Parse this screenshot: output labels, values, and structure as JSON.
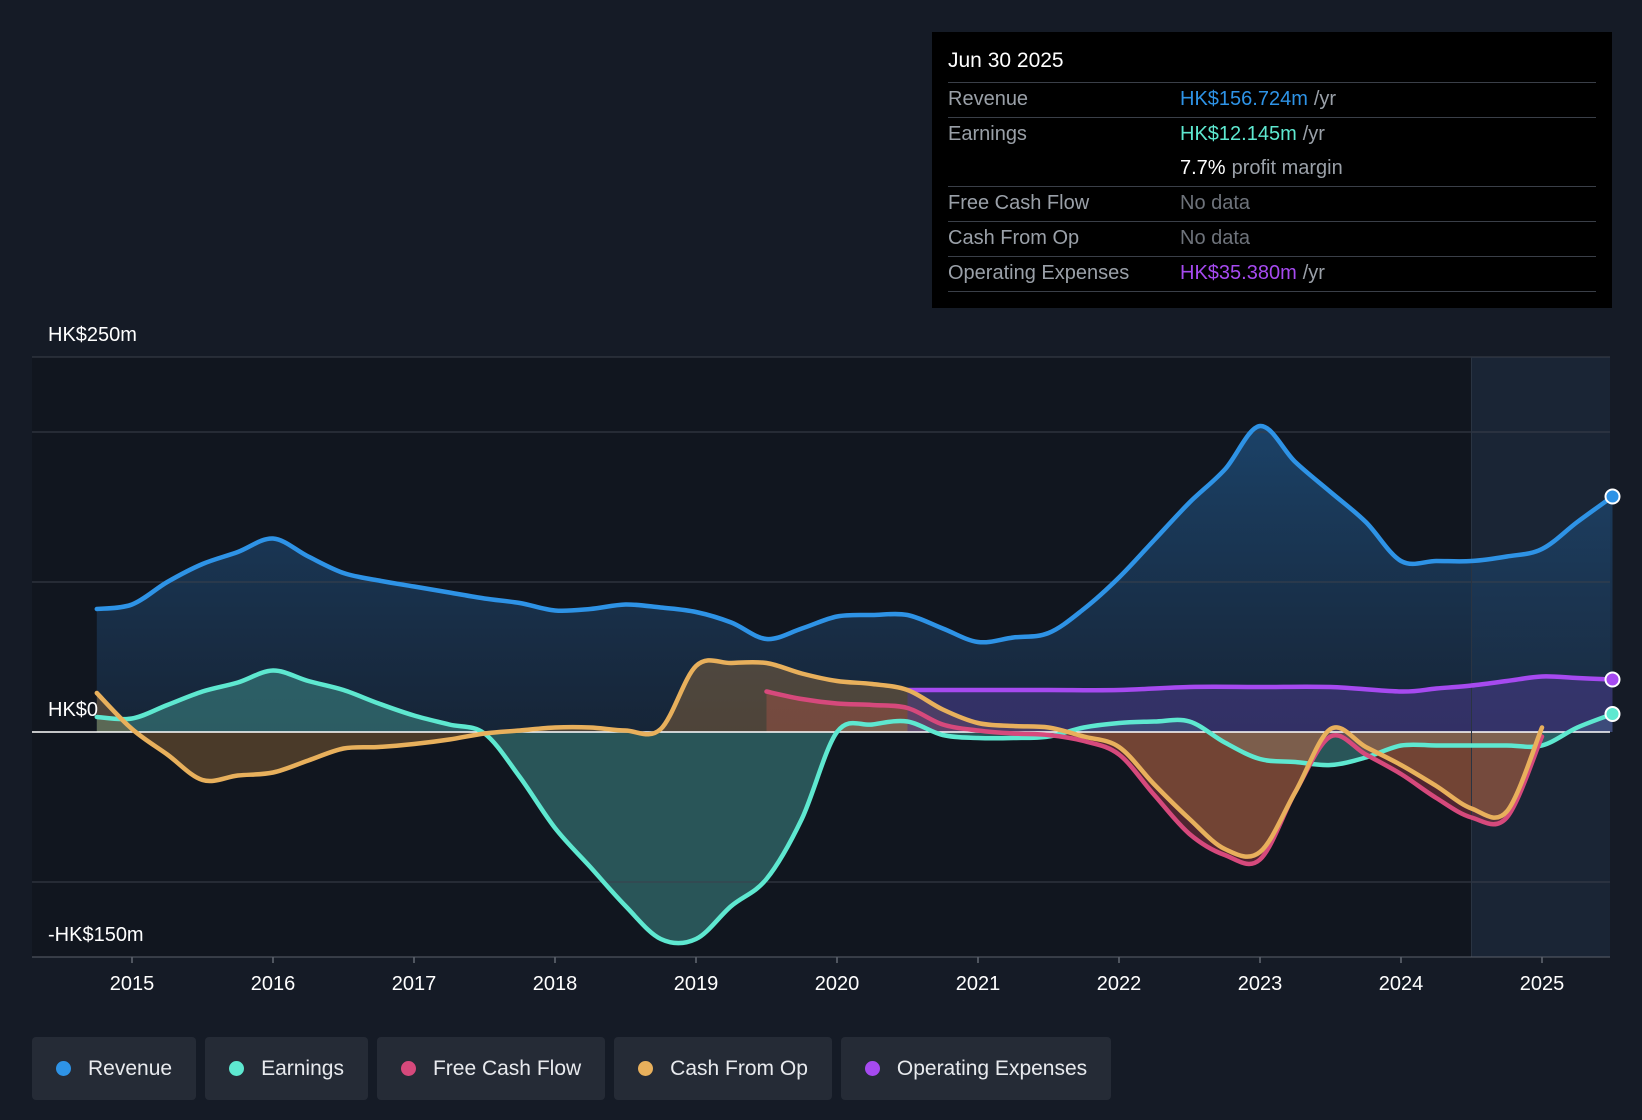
{
  "tooltip": {
    "date": "Jun 30 2025",
    "revenue_label": "Revenue",
    "revenue_value": "HK$156.724m",
    "revenue_unit": "/yr",
    "earnings_label": "Earnings",
    "earnings_value": "HK$12.145m",
    "earnings_unit": "/yr",
    "margin_value": "7.7%",
    "margin_label": "profit margin",
    "fcf_label": "Free Cash Flow",
    "fcf_value": "No data",
    "cfo_label": "Cash From Op",
    "cfo_value": "No data",
    "opex_label": "Operating Expenses",
    "opex_value": "HK$35.380m",
    "opex_unit": "/yr"
  },
  "legend": [
    {
      "label": "Revenue",
      "color": "#2e93e6"
    },
    {
      "label": "Earnings",
      "color": "#5ee8d0"
    },
    {
      "label": "Free Cash Flow",
      "color": "#d6497c"
    },
    {
      "label": "Cash From Op",
      "color": "#e8b05c"
    },
    {
      "label": "Operating Expenses",
      "color": "#a64af0"
    }
  ],
  "chart_data": {
    "type": "line",
    "ylabels": {
      "top": "HK$250m",
      "zero": "HK$0",
      "bottom": "-HK$150m"
    },
    "ylim": [
      -150,
      250
    ],
    "xlim": [
      2014.75,
      2025.5
    ],
    "forecast_start": 2024.5,
    "x_ticks": [
      "2015",
      "2016",
      "2017",
      "2018",
      "2019",
      "2020",
      "2021",
      "2022",
      "2023",
      "2024",
      "2025"
    ],
    "series": [
      {
        "name": "Revenue",
        "color": "#2e93e6",
        "points": [
          [
            2014.75,
            82
          ],
          [
            2015,
            85
          ],
          [
            2015.25,
            100
          ],
          [
            2015.5,
            112
          ],
          [
            2015.75,
            120
          ],
          [
            2016,
            129
          ],
          [
            2016.25,
            117
          ],
          [
            2016.5,
            106
          ],
          [
            2016.75,
            101
          ],
          [
            2017,
            97
          ],
          [
            2017.25,
            93
          ],
          [
            2017.5,
            89
          ],
          [
            2017.75,
            86
          ],
          [
            2018,
            81
          ],
          [
            2018.25,
            82
          ],
          [
            2018.5,
            85
          ],
          [
            2018.75,
            83
          ],
          [
            2019,
            80
          ],
          [
            2019.25,
            73
          ],
          [
            2019.5,
            62
          ],
          [
            2019.75,
            69
          ],
          [
            2020,
            77
          ],
          [
            2020.25,
            78
          ],
          [
            2020.5,
            78
          ],
          [
            2020.75,
            69
          ],
          [
            2021,
            60
          ],
          [
            2021.25,
            63
          ],
          [
            2021.5,
            66
          ],
          [
            2021.75,
            82
          ],
          [
            2022,
            103
          ],
          [
            2022.25,
            128
          ],
          [
            2022.5,
            153
          ],
          [
            2022.75,
            175
          ],
          [
            2023,
            204
          ],
          [
            2023.25,
            180
          ],
          [
            2023.5,
            160
          ],
          [
            2023.75,
            140
          ],
          [
            2024,
            114
          ],
          [
            2024.25,
            114
          ],
          [
            2024.5,
            114
          ],
          [
            2024.75,
            117
          ],
          [
            2025,
            122
          ],
          [
            2025.25,
            140
          ],
          [
            2025.5,
            157
          ]
        ]
      },
      {
        "name": "Earnings",
        "color": "#5ee8d0",
        "points": [
          [
            2014.75,
            10
          ],
          [
            2015,
            9
          ],
          [
            2015.25,
            18
          ],
          [
            2015.5,
            27
          ],
          [
            2015.75,
            33
          ],
          [
            2016,
            41
          ],
          [
            2016.25,
            34
          ],
          [
            2016.5,
            28
          ],
          [
            2016.75,
            19
          ],
          [
            2017,
            11
          ],
          [
            2017.25,
            5
          ],
          [
            2017.5,
            -1
          ],
          [
            2017.75,
            -30
          ],
          [
            2018,
            -64
          ],
          [
            2018.25,
            -90
          ],
          [
            2018.5,
            -116
          ],
          [
            2018.75,
            -138
          ],
          [
            2019,
            -138
          ],
          [
            2019.25,
            -116
          ],
          [
            2019.5,
            -98
          ],
          [
            2019.75,
            -58
          ],
          [
            2020,
            0
          ],
          [
            2020.25,
            5
          ],
          [
            2020.5,
            7
          ],
          [
            2020.75,
            -2
          ],
          [
            2021,
            -4
          ],
          [
            2021.25,
            -4
          ],
          [
            2021.5,
            -3
          ],
          [
            2021.75,
            3
          ],
          [
            2022,
            6
          ],
          [
            2022.25,
            7
          ],
          [
            2022.5,
            7
          ],
          [
            2022.75,
            -7
          ],
          [
            2023,
            -18
          ],
          [
            2023.25,
            -20
          ],
          [
            2023.5,
            -22
          ],
          [
            2023.75,
            -17
          ],
          [
            2024,
            -9
          ],
          [
            2024.25,
            -9
          ],
          [
            2024.5,
            -9
          ],
          [
            2024.75,
            -9
          ],
          [
            2025,
            -9
          ],
          [
            2025.25,
            3
          ],
          [
            2025.5,
            12
          ]
        ]
      },
      {
        "name": "Free Cash Flow",
        "color": "#d6497c",
        "points": [
          [
            2019.5,
            27
          ],
          [
            2019.75,
            22
          ],
          [
            2020,
            19
          ],
          [
            2020.25,
            18
          ],
          [
            2020.5,
            16
          ],
          [
            2020.75,
            5
          ],
          [
            2021,
            1
          ],
          [
            2021.25,
            -1
          ],
          [
            2021.5,
            -2
          ],
          [
            2021.75,
            -6
          ],
          [
            2022,
            -15
          ],
          [
            2022.25,
            -42
          ],
          [
            2022.5,
            -68
          ],
          [
            2022.75,
            -82
          ],
          [
            2023,
            -85
          ],
          [
            2023.25,
            -40
          ],
          [
            2023.5,
            -3
          ],
          [
            2023.75,
            -15
          ],
          [
            2024,
            -28
          ],
          [
            2024.25,
            -44
          ],
          [
            2024.5,
            -57
          ],
          [
            2024.75,
            -57
          ],
          [
            2025,
            -3
          ]
        ]
      },
      {
        "name": "Cash From Op",
        "color": "#e8b05c",
        "points": [
          [
            2014.75,
            26
          ],
          [
            2015,
            2
          ],
          [
            2015.25,
            -15
          ],
          [
            2015.5,
            -32
          ],
          [
            2015.75,
            -29
          ],
          [
            2016,
            -27
          ],
          [
            2016.25,
            -19
          ],
          [
            2016.5,
            -11
          ],
          [
            2016.75,
            -10
          ],
          [
            2017,
            -8
          ],
          [
            2017.25,
            -5
          ],
          [
            2017.5,
            -1
          ],
          [
            2017.75,
            1
          ],
          [
            2018,
            3
          ],
          [
            2018.25,
            3
          ],
          [
            2018.5,
            1
          ],
          [
            2018.75,
            2
          ],
          [
            2019,
            44
          ],
          [
            2019.25,
            46
          ],
          [
            2019.5,
            46
          ],
          [
            2019.75,
            39
          ],
          [
            2020,
            34
          ],
          [
            2020.25,
            32
          ],
          [
            2020.5,
            28
          ],
          [
            2020.75,
            15
          ],
          [
            2021,
            6
          ],
          [
            2021.25,
            4
          ],
          [
            2021.5,
            3
          ],
          [
            2021.75,
            -3
          ],
          [
            2022,
            -10
          ],
          [
            2022.25,
            -35
          ],
          [
            2022.5,
            -58
          ],
          [
            2022.75,
            -78
          ],
          [
            2023,
            -80
          ],
          [
            2023.25,
            -40
          ],
          [
            2023.5,
            2
          ],
          [
            2023.75,
            -10
          ],
          [
            2024,
            -22
          ],
          [
            2024.25,
            -36
          ],
          [
            2024.5,
            -51
          ],
          [
            2024.75,
            -53
          ],
          [
            2025,
            3
          ]
        ]
      },
      {
        "name": "Operating Expenses",
        "color": "#a64af0",
        "points": [
          [
            2020.5,
            28
          ],
          [
            2021,
            28
          ],
          [
            2021.5,
            28
          ],
          [
            2022,
            28
          ],
          [
            2022.5,
            30
          ],
          [
            2023,
            30
          ],
          [
            2023.5,
            30
          ],
          [
            2024,
            27
          ],
          [
            2024.25,
            29
          ],
          [
            2024.5,
            31
          ],
          [
            2024.75,
            34
          ],
          [
            2025,
            37
          ],
          [
            2025.25,
            36
          ],
          [
            2025.5,
            35
          ]
        ]
      }
    ]
  }
}
